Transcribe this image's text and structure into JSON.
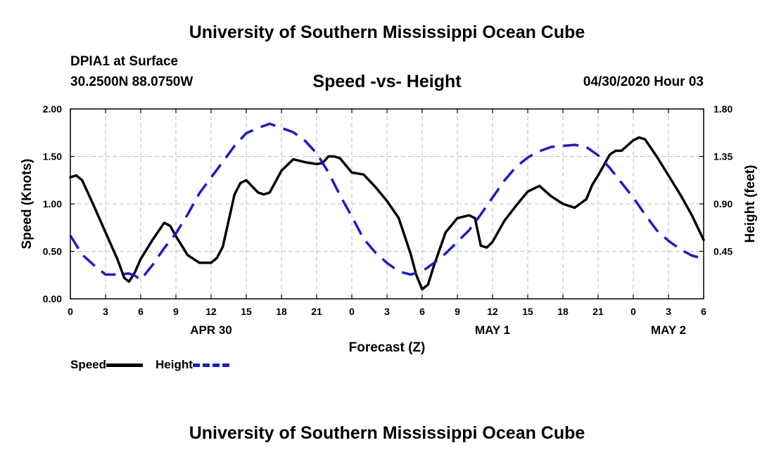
{
  "header": {
    "title": "University of Southern Mississippi Ocean Cube",
    "station": "DPIA1 at Surface",
    "coords": "30.2500N 88.0750W",
    "datetime": "04/30/2020 Hour 03"
  },
  "footer": {
    "title": "University of Southern Mississippi Ocean Cube"
  },
  "colors": {
    "speed": "#000000",
    "height": "#1a1acc",
    "grid": "#bbbbbb"
  },
  "chart_data": {
    "type": "line",
    "title": "Speed -vs- Height",
    "xlabel": "Forecast (Z)",
    "ylabel_left": "Speed (Knots)",
    "ylabel_right": "Height (feet)",
    "xlim": [
      0,
      54
    ],
    "ylim_left": [
      0,
      2
    ],
    "ylim_right": [
      0,
      1.8
    ],
    "grid": true,
    "x_ticks": [
      0,
      3,
      6,
      9,
      12,
      15,
      18,
      21,
      24,
      27,
      30,
      33,
      36,
      39,
      42,
      45,
      48,
      51,
      54
    ],
    "x_tick_labels": [
      "0",
      "3",
      "6",
      "9",
      "12",
      "15",
      "18",
      "21",
      "0",
      "3",
      "6",
      "9",
      "12",
      "15",
      "18",
      "21",
      "0",
      "3",
      "6"
    ],
    "y_ticks_left": [
      0,
      0.5,
      1,
      1.5,
      2
    ],
    "y_tick_labels_left": [
      "0.00",
      "0.50",
      "1.00",
      "1.50",
      "2.00"
    ],
    "y_ticks_right": [
      0.45,
      0.9,
      1.35,
      1.8
    ],
    "y_tick_labels_right": [
      "0.45",
      "0.90",
      "1.35",
      "1.80"
    ],
    "date_labels": [
      {
        "x": 12,
        "label": "APR 30"
      },
      {
        "x": 36,
        "label": "MAY 1"
      },
      {
        "x": 51,
        "label": "MAY 2"
      }
    ],
    "series": [
      {
        "name": "Speed",
        "axis": "left",
        "style": "solid",
        "x": [
          0,
          0.5,
          1,
          2,
          3,
          4,
          4.6,
          5,
          5.5,
          6,
          7,
          8,
          8.5,
          9,
          10,
          11,
          12,
          12.5,
          13,
          14,
          14.5,
          15,
          16,
          16.5,
          17,
          18,
          19,
          20,
          21,
          21.5,
          22,
          22.5,
          23,
          24,
          25,
          26,
          27,
          28,
          29,
          29.5,
          30,
          30.5,
          31,
          32,
          33,
          34,
          34.5,
          35,
          35.5,
          36,
          37,
          38,
          39,
          40,
          41,
          42,
          43,
          44,
          44.5,
          45,
          46,
          46.5,
          47,
          48,
          48.5,
          49,
          50,
          51,
          52,
          53,
          54
        ],
        "values": [
          1.28,
          1.3,
          1.25,
          0.98,
          0.7,
          0.42,
          0.22,
          0.18,
          0.28,
          0.42,
          0.62,
          0.8,
          0.77,
          0.66,
          0.46,
          0.38,
          0.38,
          0.43,
          0.55,
          1.1,
          1.22,
          1.25,
          1.12,
          1.1,
          1.12,
          1.35,
          1.47,
          1.44,
          1.42,
          1.43,
          1.5,
          1.5,
          1.48,
          1.33,
          1.31,
          1.18,
          1.03,
          0.85,
          0.48,
          0.25,
          0.1,
          0.15,
          0.35,
          0.7,
          0.85,
          0.88,
          0.85,
          0.56,
          0.54,
          0.6,
          0.82,
          0.98,
          1.13,
          1.19,
          1.08,
          1.0,
          0.96,
          1.05,
          1.2,
          1.3,
          1.52,
          1.56,
          1.56,
          1.67,
          1.7,
          1.68,
          1.5,
          1.3,
          1.1,
          0.88,
          0.62
        ]
      },
      {
        "name": "Height",
        "axis": "right",
        "style": "dashed",
        "x": [
          0,
          1,
          2,
          3,
          4,
          5,
          5.5,
          6,
          6.5,
          7,
          8,
          9,
          10,
          11,
          12,
          13,
          14,
          15,
          16,
          17,
          18,
          19,
          20,
          21,
          22,
          23,
          24,
          25,
          26,
          27,
          28,
          29,
          30,
          31,
          32,
          33,
          34,
          35,
          36,
          37,
          38,
          39,
          40,
          41,
          42,
          43,
          44,
          45,
          46,
          47,
          48,
          49,
          50,
          51,
          52,
          53,
          54
        ],
        "values": [
          0.6,
          0.42,
          0.32,
          0.23,
          0.23,
          0.24,
          0.22,
          0.18,
          0.25,
          0.32,
          0.48,
          0.62,
          0.8,
          1.0,
          1.15,
          1.3,
          1.45,
          1.57,
          1.62,
          1.66,
          1.62,
          1.58,
          1.5,
          1.38,
          1.2,
          0.98,
          0.78,
          0.57,
          0.44,
          0.34,
          0.26,
          0.23,
          0.26,
          0.34,
          0.43,
          0.54,
          0.65,
          0.8,
          0.96,
          1.12,
          1.25,
          1.34,
          1.4,
          1.44,
          1.45,
          1.46,
          1.44,
          1.36,
          1.24,
          1.1,
          0.96,
          0.8,
          0.65,
          0.55,
          0.47,
          0.41,
          0.38
        ]
      }
    ]
  }
}
